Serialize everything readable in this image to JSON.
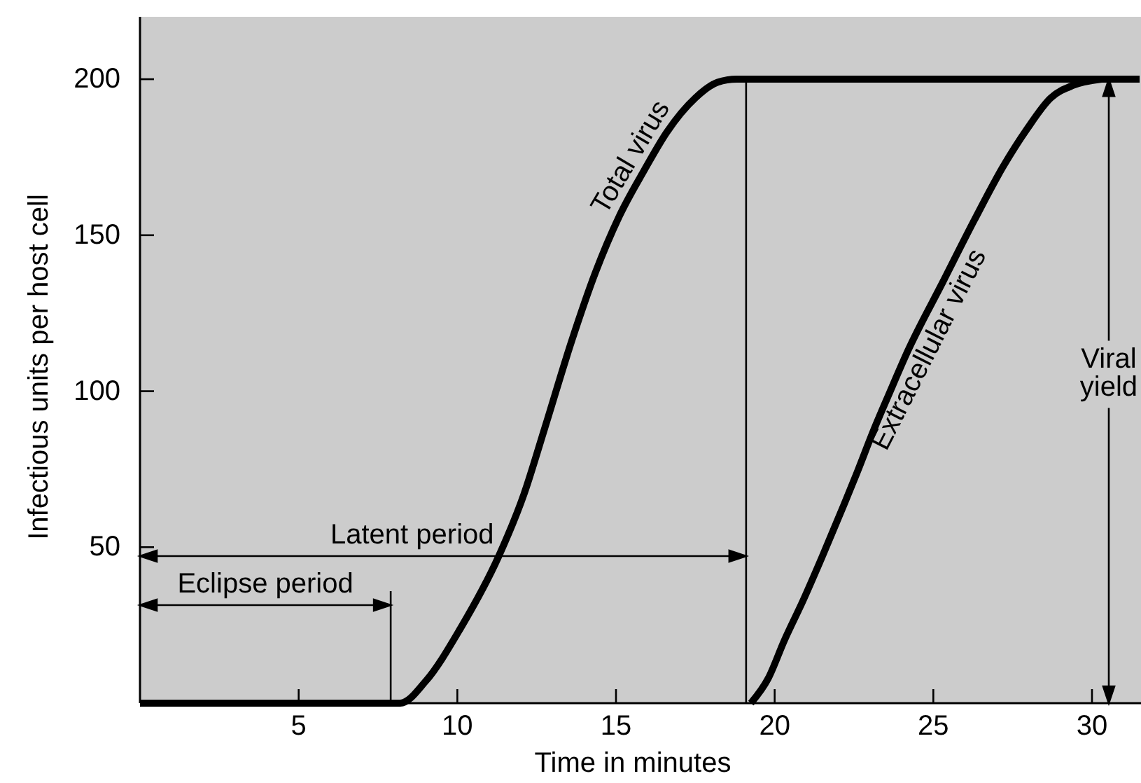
{
  "chart_data": {
    "type": "line",
    "xlabel": "Time in minutes",
    "ylabel": "Infectious units per host cell",
    "xlim": [
      0,
      31.5
    ],
    "ylim": [
      0,
      220
    ],
    "xticks": [
      5,
      10,
      15,
      20,
      25,
      30
    ],
    "yticks": [
      50,
      100,
      150,
      200
    ],
    "series": [
      {
        "name": "Total virus",
        "color": "#000000",
        "x": [
          0,
          8.2,
          9.0,
          10.1,
          11.3,
          12.1,
          12.75,
          13.6,
          14.35,
          15.1,
          15.9,
          16.6,
          17.5,
          18.2,
          18.8,
          31.5
        ],
        "values": [
          0,
          0,
          7,
          24,
          47,
          67,
          88,
          116,
          138,
          156,
          171,
          183,
          194,
          199,
          200,
          200
        ]
      },
      {
        "name": "Extracellular virus",
        "color": "#000000",
        "x": [
          19.25,
          19.8,
          20.3,
          20.9,
          21.5,
          22.2,
          22.6,
          23.1,
          23.6,
          24.2,
          25.3,
          26.3,
          27.2,
          27.95,
          28.7,
          29.4,
          30.3
        ],
        "values": [
          0,
          8,
          20,
          33,
          47,
          64,
          74,
          87,
          99,
          113,
          135,
          155,
          172,
          184,
          194,
          198,
          200
        ]
      }
    ],
    "ref_lines": [
      {
        "axis": "x",
        "value": 7.9
      },
      {
        "axis": "x",
        "value": 19.1
      }
    ],
    "annotations": [
      "Eclipse period",
      "Latent period",
      "Viral yield"
    ]
  }
}
